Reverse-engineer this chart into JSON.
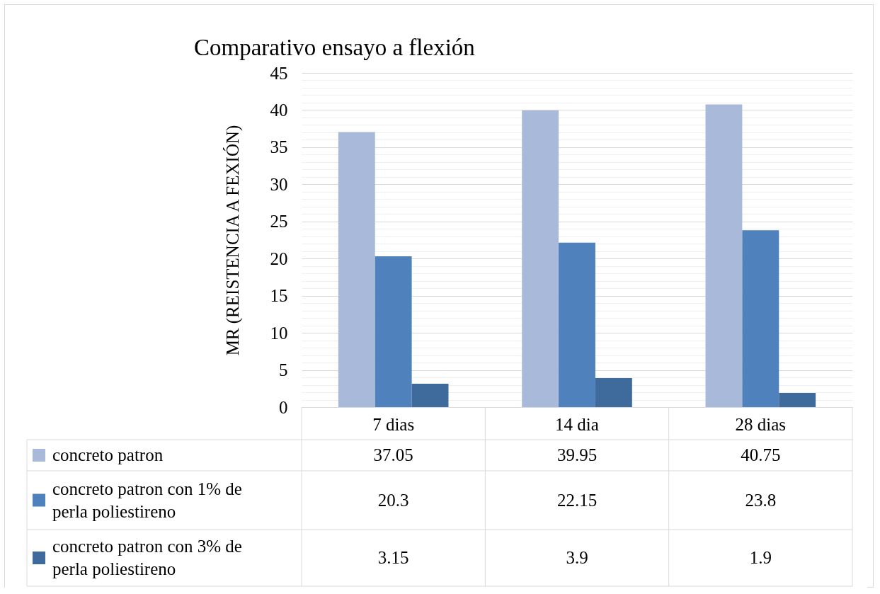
{
  "chart_data": {
    "type": "bar",
    "title": "Comparativo ensayo a flexión",
    "ylabel": "MR (REISTENCIA A FEXIÓN)",
    "categories": [
      "7 dias",
      "14 dia",
      "28 dias"
    ],
    "series": [
      {
        "name": "concreto patron",
        "color": "#a9b9d9",
        "values": [
          37.05,
          39.95,
          40.75
        ]
      },
      {
        "name": "concreto patron con 1% de perla poliestireno",
        "color": "#4f81bd",
        "values": [
          20.3,
          22.15,
          23.8
        ]
      },
      {
        "name": "concreto patron con 3% de perla poliestireno",
        "color": "#3e6a9c",
        "values": [
          3.15,
          3.9,
          1.9
        ]
      }
    ],
    "ylim": [
      0,
      45
    ],
    "yticks": [
      0,
      {
        "value": 1,
        "label": null
      },
      {
        "value": 2,
        "label": null
      },
      {
        "value": 3,
        "label": null
      },
      {
        "value": 4,
        "label": null
      },
      5,
      {
        "value": 6,
        "label": null
      },
      {
        "value": 7,
        "label": null
      },
      {
        "value": 8,
        "label": null
      },
      {
        "value": 9,
        "label": null
      },
      10,
      {
        "value": 11,
        "label": null
      },
      {
        "value": 12,
        "label": null
      },
      {
        "value": 13,
        "label": null
      },
      {
        "value": 14,
        "label": null
      },
      15,
      {
        "value": 16,
        "label": null
      },
      {
        "value": 17,
        "label": null
      },
      {
        "value": 18,
        "label": null
      },
      {
        "value": 19,
        "label": null
      },
      20,
      {
        "value": 21,
        "label": null
      },
      {
        "value": 22,
        "label": null
      },
      {
        "value": 23,
        "label": null
      },
      {
        "value": 24,
        "label": null
      },
      25,
      {
        "value": 26,
        "label": null
      },
      {
        "value": 27,
        "label": null
      },
      {
        "value": 28,
        "label": null
      },
      {
        "value": 29,
        "label": null
      },
      30,
      {
        "value": 31,
        "label": null
      },
      {
        "value": 32,
        "label": null
      },
      {
        "value": 33,
        "label": null
      },
      {
        "value": 34,
        "label": null
      },
      35,
      {
        "value": 36,
        "label": null
      },
      {
        "value": 37,
        "label": null
      },
      {
        "value": 38,
        "label": null
      },
      {
        "value": 39,
        "label": null
      },
      40,
      {
        "value": 41,
        "label": null
      },
      {
        "value": 42,
        "label": null
      },
      {
        "value": 43,
        "label": null
      },
      {
        "value": 44,
        "label": null
      },
      45
    ],
    "grid": "y",
    "legend": "bottom left",
    "data_labels": true
  }
}
